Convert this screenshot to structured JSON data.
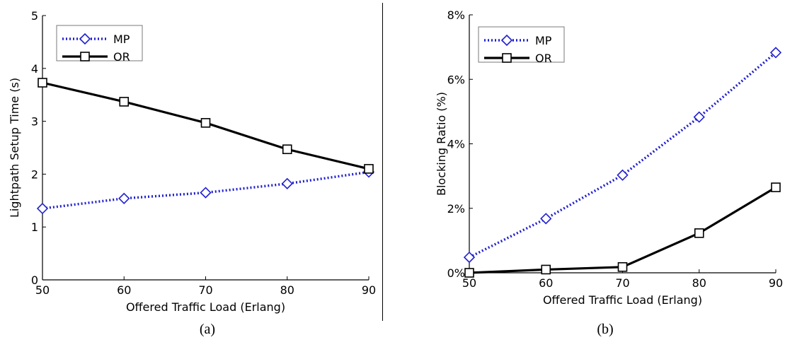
{
  "chart_data": [
    {
      "type": "line",
      "caption": "(a)",
      "xlabel": "Offered Traffic Load (Erlang)",
      "ylabel": "Lightpath Setup Time (s)",
      "x": [
        50,
        60,
        70,
        80,
        90
      ],
      "xlim": [
        50,
        90
      ],
      "ylim": [
        0,
        5
      ],
      "xticks": [
        "50",
        "60",
        "70",
        "80",
        "90"
      ],
      "yticks": [
        "0",
        "1",
        "2",
        "3",
        "4",
        "5"
      ],
      "grid": false,
      "legend_position": "top-left",
      "series": [
        {
          "name": "MP",
          "values": [
            1.35,
            1.54,
            1.65,
            1.82,
            2.04
          ],
          "color": "#2020d0",
          "style": "dotted",
          "marker": "diamond"
        },
        {
          "name": "OR",
          "values": [
            3.73,
            3.37,
            2.97,
            2.47,
            2.1
          ],
          "color": "#000000",
          "style": "solid",
          "marker": "square"
        }
      ]
    },
    {
      "type": "line",
      "caption": "(b)",
      "xlabel": "Offered Traffic Load (Erlang)",
      "ylabel": "Blocking Ratio (%)",
      "x": [
        50,
        60,
        70,
        80,
        90
      ],
      "xlim": [
        50,
        90
      ],
      "ylim": [
        0,
        8
      ],
      "xticks": [
        "50",
        "60",
        "70",
        "80",
        "90"
      ],
      "yticks": [
        "0%",
        "2%",
        "4%",
        "6%",
        "8%"
      ],
      "grid": false,
      "legend_position": "top-left",
      "series": [
        {
          "name": "MP",
          "values": [
            0.48,
            1.68,
            3.03,
            4.83,
            6.83
          ],
          "color": "#2020d0",
          "style": "dotted",
          "marker": "diamond"
        },
        {
          "name": "OR",
          "values": [
            0.0,
            0.1,
            0.18,
            1.23,
            2.65
          ],
          "color": "#000000",
          "style": "solid",
          "marker": "square"
        }
      ]
    }
  ]
}
